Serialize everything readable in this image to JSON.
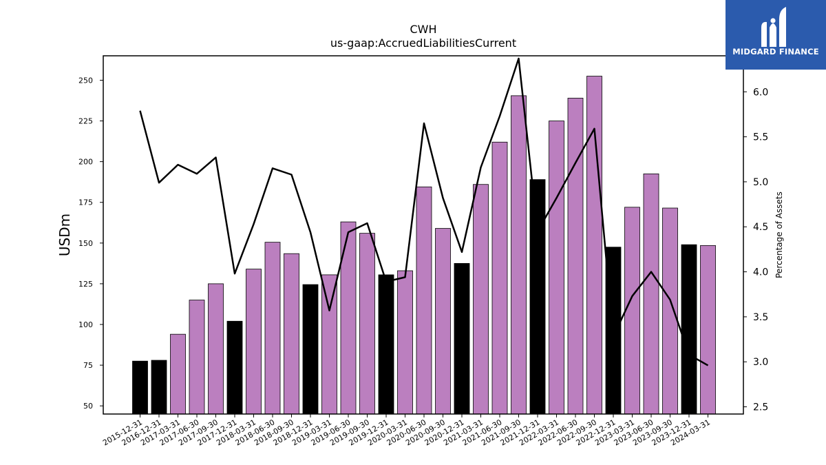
{
  "chart_data": {
    "type": "bar",
    "title": "CWH",
    "subtitle": "us-gaap:AccruedLiabilitiesCurrent",
    "ylabel": "USDm",
    "y2label": "Percentage of Assets",
    "ylim": [
      45,
      265
    ],
    "y2lim": [
      2.42,
      6.4
    ],
    "yticks": [
      50,
      75,
      100,
      125,
      150,
      175,
      200,
      225,
      250
    ],
    "y2ticks": [
      2.5,
      3.0,
      3.5,
      4.0,
      4.5,
      5.0,
      5.5,
      6.0
    ],
    "categories": [
      "2015-12-31",
      "2016-12-31",
      "2017-03-31",
      "2017-06-30",
      "2017-09-30",
      "2017-12-31",
      "2018-03-31",
      "2018-06-30",
      "2018-09-30",
      "2018-12-31",
      "2019-03-31",
      "2019-06-30",
      "2019-09-30",
      "2019-12-31",
      "2020-03-31",
      "2020-06-30",
      "2020-09-30",
      "2020-12-31",
      "2021-03-31",
      "2021-06-30",
      "2021-09-30",
      "2021-12-31",
      "2022-03-31",
      "2022-06-30",
      "2022-09-30",
      "2022-12-31",
      "2023-03-31",
      "2023-06-30",
      "2023-09-30",
      "2023-12-31",
      "2024-03-31"
    ],
    "series": [
      {
        "kind": "bar",
        "values": [
          77.5,
          78,
          94,
          115,
          125,
          102,
          134,
          150.5,
          143.5,
          124.5,
          130.5,
          163,
          156,
          130.5,
          133,
          184.5,
          159,
          137.5,
          186,
          212,
          240.5,
          189,
          225,
          239,
          252.5,
          147.5,
          172,
          192.5,
          171.5,
          149,
          148.5
        ],
        "bar_types": [
          "annual",
          "annual",
          "quarterly",
          "quarterly",
          "quarterly",
          "annual",
          "quarterly",
          "quarterly",
          "quarterly",
          "annual",
          "quarterly",
          "quarterly",
          "quarterly",
          "annual",
          "quarterly",
          "quarterly",
          "quarterly",
          "annual",
          "quarterly",
          "quarterly",
          "quarterly",
          "annual",
          "quarterly",
          "quarterly",
          "quarterly",
          "annual",
          "quarterly",
          "quarterly",
          "quarterly",
          "annual",
          "quarterly"
        ]
      },
      {
        "kind": "line",
        "axis": "right",
        "values": [
          5.79,
          4.99,
          5.19,
          5.09,
          5.27,
          3.98,
          4.53,
          5.15,
          5.08,
          4.44,
          3.57,
          4.44,
          4.54,
          3.89,
          3.94,
          5.65,
          4.82,
          4.22,
          5.16,
          5.73,
          6.37,
          4.45,
          4.82,
          5.21,
          5.59,
          3.28,
          3.73,
          4.0,
          3.69,
          3.08,
          2.96
        ]
      }
    ],
    "colors": {
      "quarterly": "#bb7fbf",
      "annual": "#000000",
      "line": "#000000"
    }
  },
  "logo": {
    "name": "MIDGARD FINANCE"
  }
}
